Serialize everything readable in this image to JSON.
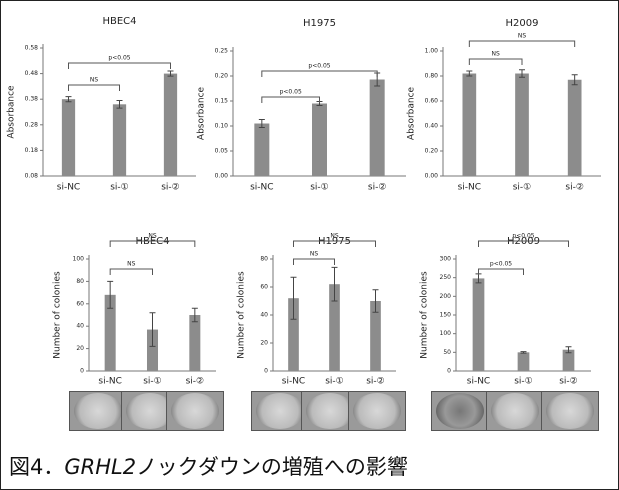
{
  "chart_data": [
    {
      "type": "bar",
      "title": "HBEC4",
      "y_label": "Absorbance",
      "categories": [
        "si-NC",
        "si-①",
        "si-②"
      ],
      "values": [
        0.38,
        0.36,
        0.48
      ],
      "errors": [
        0.01,
        0.015,
        0.01
      ],
      "color": "#8c8c8c",
      "ylim": [
        0.08,
        0.58
      ],
      "yticks": [
        0.08,
        0.18,
        0.28,
        0.38,
        0.48,
        0.58
      ],
      "annotations": [
        "NS",
        "p<0.05"
      ]
    },
    {
      "type": "bar",
      "title": "H1975",
      "y_label": "Absorbance",
      "categories": [
        "si-NC",
        "si-①",
        "si-②"
      ],
      "values": [
        0.105,
        0.145,
        0.193
      ],
      "errors": [
        0.008,
        0.004,
        0.013
      ],
      "color": "#8c8c8c",
      "ylim": [
        0,
        0.25
      ],
      "yticks": [
        {
          "value": 0,
          "label": "0.00"
        },
        {
          "value": 0.05,
          "label": "0.05"
        },
        {
          "value": 0.1,
          "label": "0.10"
        },
        {
          "value": 0.15,
          "label": "0.15"
        },
        {
          "value": 0.2,
          "label": "0.20"
        },
        {
          "value": 0.25,
          "label": "0.25"
        }
      ],
      "annotations": [
        "p<0.05",
        "p<0.05"
      ]
    },
    {
      "type": "bar",
      "title": "H2009",
      "y_label": "Absorbance",
      "categories": [
        "si-NC",
        "si-①",
        "si-②"
      ],
      "values": [
        0.82,
        0.82,
        0.77
      ],
      "errors": [
        0.02,
        0.03,
        0.04
      ],
      "color": "#8c8c8c",
      "ylim": [
        0,
        1
      ],
      "yticks": [
        {
          "value": 0,
          "label": "0.00"
        },
        {
          "value": 0.2,
          "label": "0.20"
        },
        {
          "value": 0.4,
          "label": "0.40"
        },
        {
          "value": 0.6,
          "label": "0.60"
        },
        {
          "value": 0.8,
          "label": "0.80"
        },
        {
          "value": 1,
          "label": "1.00"
        }
      ],
      "annotations": [
        "NS",
        "NS"
      ]
    },
    {
      "type": "bar",
      "title": "HBEC4",
      "y_label": "Number of colonies",
      "categories": [
        "si-NC",
        "si-①",
        "si-②"
      ],
      "values": [
        68,
        37,
        50
      ],
      "errors": [
        12,
        15,
        6
      ],
      "color": "#8c8c8c",
      "ylim": [
        0,
        100
      ],
      "yticks": [
        0,
        20,
        40,
        60,
        80,
        100
      ],
      "annotations": [
        "NS",
        "NS"
      ]
    },
    {
      "type": "bar",
      "title": "H1975",
      "y_label": "Number of colonies",
      "categories": [
        "si-NC",
        "si-①",
        "si-②"
      ],
      "values": [
        52,
        62,
        50
      ],
      "errors": [
        15,
        12,
        8
      ],
      "color": "#8c8c8c",
      "ylim": [
        0,
        80
      ],
      "yticks": [
        0,
        20,
        40,
        60,
        80
      ],
      "annotations": [
        "NS",
        "NS"
      ]
    },
    {
      "type": "bar",
      "title": "H2009",
      "y_label": "Number of colonies",
      "categories": [
        "si-NC",
        "si-①",
        "si-②"
      ],
      "values": [
        248,
        50,
        57
      ],
      "errors": [
        12,
        2,
        8
      ],
      "color": "#8c8c8c",
      "ylim": [
        0,
        300
      ],
      "yticks": [
        0,
        50,
        100,
        150,
        200,
        250,
        300
      ],
      "annotations": [
        "p<0.05",
        "p<0.05"
      ]
    }
  ],
  "caption": [
    "図4．",
    "GRHL2",
    "ノックダウンの増殖への影響"
  ]
}
